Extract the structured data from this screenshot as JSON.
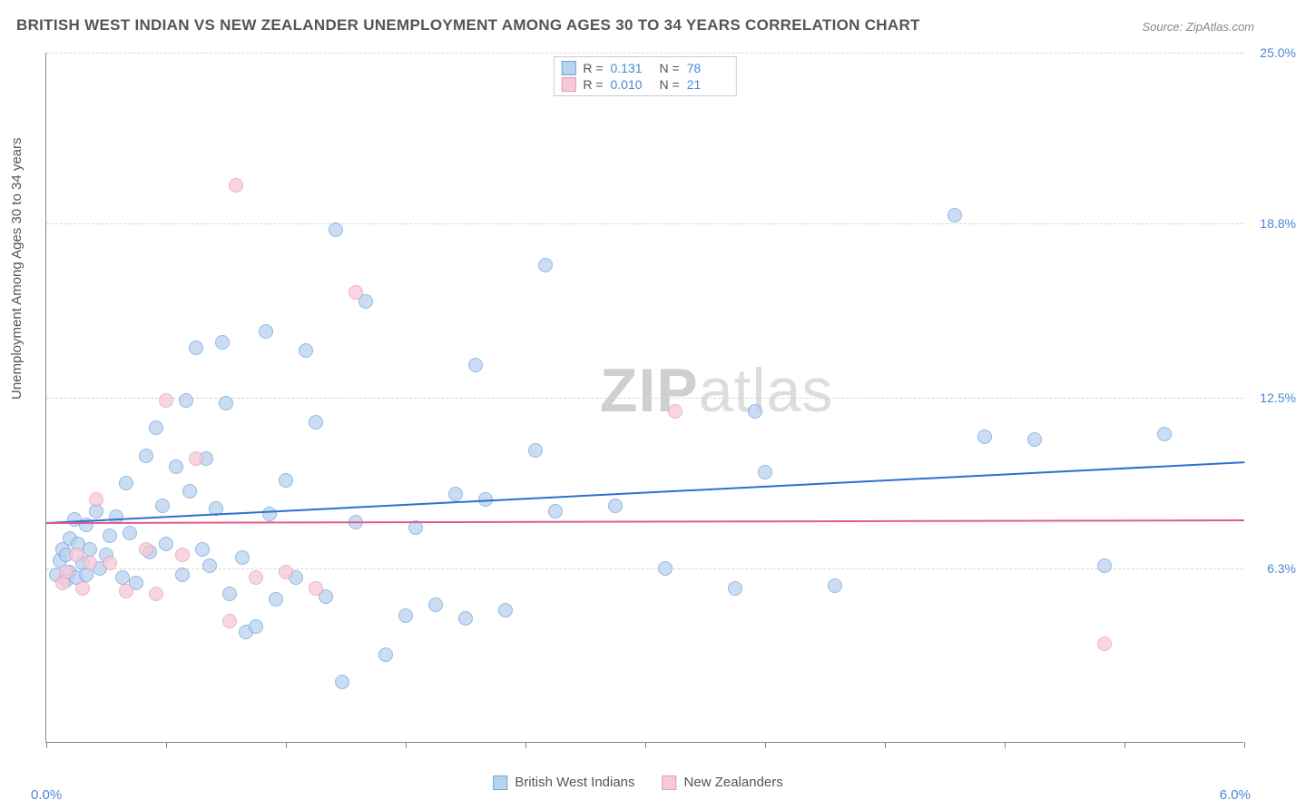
{
  "title": "BRITISH WEST INDIAN VS NEW ZEALANDER UNEMPLOYMENT AMONG AGES 30 TO 34 YEARS CORRELATION CHART",
  "source": "Source: ZipAtlas.com",
  "y_axis_title": "Unemployment Among Ages 30 to 34 years",
  "watermark_a": "ZIP",
  "watermark_b": "atlas",
  "chart": {
    "type": "scatter",
    "background_color": "#ffffff",
    "grid_color": "#d5d5d5",
    "axis_color": "#888888",
    "title_fontsize": 17,
    "label_fontsize": 15,
    "tick_label_color": "#4a88d6",
    "text_color": "#555555",
    "marker_radius": 8,
    "marker_opacity": 0.75,
    "xlim": [
      0.0,
      6.0
    ],
    "ylim": [
      0.0,
      25.0
    ],
    "x_ticks": [
      0.0,
      0.6,
      1.2,
      1.8,
      2.4,
      3.0,
      3.6,
      4.2,
      4.8,
      5.4,
      6.0
    ],
    "x_tick_labels": {
      "left": "0.0%",
      "right": "6.0%"
    },
    "y_gridlines": [
      6.3,
      12.5,
      18.8,
      25.0
    ],
    "y_tick_labels": [
      "6.3%",
      "12.5%",
      "18.8%",
      "25.0%"
    ],
    "trendlines": [
      {
        "series": "bwi",
        "y_start": 8.0,
        "y_end": 10.2,
        "color": "#2e6fd0",
        "width": 2
      },
      {
        "series": "nz",
        "y_start": 8.0,
        "y_end": 8.1,
        "color": "#e05a8c",
        "width": 2
      }
    ],
    "series": [
      {
        "id": "bwi",
        "name": "British West Indians",
        "fill": "#b9d2ee",
        "stroke": "#6fa3db",
        "r_value": "0.131",
        "n_value": "78",
        "points": [
          [
            0.05,
            6.1
          ],
          [
            0.07,
            6.6
          ],
          [
            0.08,
            7.0
          ],
          [
            0.1,
            5.9
          ],
          [
            0.1,
            6.8
          ],
          [
            0.12,
            7.4
          ],
          [
            0.12,
            6.2
          ],
          [
            0.14,
            8.1
          ],
          [
            0.15,
            6.0
          ],
          [
            0.16,
            7.2
          ],
          [
            0.18,
            6.5
          ],
          [
            0.2,
            7.9
          ],
          [
            0.2,
            6.1
          ],
          [
            0.22,
            7.0
          ],
          [
            0.25,
            8.4
          ],
          [
            0.27,
            6.3
          ],
          [
            0.3,
            6.8
          ],
          [
            0.32,
            7.5
          ],
          [
            0.35,
            8.2
          ],
          [
            0.38,
            6.0
          ],
          [
            0.4,
            9.4
          ],
          [
            0.42,
            7.6
          ],
          [
            0.45,
            5.8
          ],
          [
            0.5,
            10.4
          ],
          [
            0.52,
            6.9
          ],
          [
            0.55,
            11.4
          ],
          [
            0.58,
            8.6
          ],
          [
            0.6,
            7.2
          ],
          [
            0.65,
            10.0
          ],
          [
            0.68,
            6.1
          ],
          [
            0.7,
            12.4
          ],
          [
            0.72,
            9.1
          ],
          [
            0.75,
            14.3
          ],
          [
            0.78,
            7.0
          ],
          [
            0.8,
            10.3
          ],
          [
            0.82,
            6.4
          ],
          [
            0.85,
            8.5
          ],
          [
            0.88,
            14.5
          ],
          [
            0.9,
            12.3
          ],
          [
            0.92,
            5.4
          ],
          [
            0.98,
            6.7
          ],
          [
            1.0,
            4.0
          ],
          [
            1.05,
            4.2
          ],
          [
            1.1,
            14.9
          ],
          [
            1.12,
            8.3
          ],
          [
            1.15,
            5.2
          ],
          [
            1.2,
            9.5
          ],
          [
            1.25,
            6.0
          ],
          [
            1.3,
            14.2
          ],
          [
            1.35,
            11.6
          ],
          [
            1.4,
            5.3
          ],
          [
            1.45,
            18.6
          ],
          [
            1.48,
            2.2
          ],
          [
            1.55,
            8.0
          ],
          [
            1.6,
            16.0
          ],
          [
            1.7,
            3.2
          ],
          [
            1.8,
            4.6
          ],
          [
            1.85,
            7.8
          ],
          [
            1.95,
            5.0
          ],
          [
            2.05,
            9.0
          ],
          [
            2.1,
            4.5
          ],
          [
            2.15,
            13.7
          ],
          [
            2.2,
            8.8
          ],
          [
            2.3,
            4.8
          ],
          [
            2.45,
            10.6
          ],
          [
            2.5,
            17.3
          ],
          [
            2.55,
            8.4
          ],
          [
            2.85,
            8.6
          ],
          [
            3.1,
            6.3
          ],
          [
            3.45,
            5.6
          ],
          [
            3.55,
            12.0
          ],
          [
            3.6,
            9.8
          ],
          [
            3.95,
            5.7
          ],
          [
            4.55,
            19.1
          ],
          [
            4.7,
            11.1
          ],
          [
            4.95,
            11.0
          ],
          [
            5.3,
            6.4
          ],
          [
            5.6,
            11.2
          ]
        ]
      },
      {
        "id": "nz",
        "name": "New Zealanders",
        "fill": "#f6c9d7",
        "stroke": "#e99ab5",
        "r_value": "0.010",
        "n_value": "21",
        "points": [
          [
            0.08,
            5.8
          ],
          [
            0.1,
            6.2
          ],
          [
            0.15,
            6.8
          ],
          [
            0.18,
            5.6
          ],
          [
            0.22,
            6.5
          ],
          [
            0.25,
            8.8
          ],
          [
            0.32,
            6.5
          ],
          [
            0.4,
            5.5
          ],
          [
            0.5,
            7.0
          ],
          [
            0.55,
            5.4
          ],
          [
            0.6,
            12.4
          ],
          [
            0.68,
            6.8
          ],
          [
            0.75,
            10.3
          ],
          [
            0.92,
            4.4
          ],
          [
            0.95,
            20.2
          ],
          [
            1.05,
            6.0
          ],
          [
            1.2,
            6.2
          ],
          [
            1.35,
            5.6
          ],
          [
            1.55,
            16.3
          ],
          [
            3.15,
            12.0
          ],
          [
            5.3,
            3.6
          ]
        ]
      }
    ],
    "legend_position": "bottom-center",
    "stats_box_position": "top-center"
  }
}
